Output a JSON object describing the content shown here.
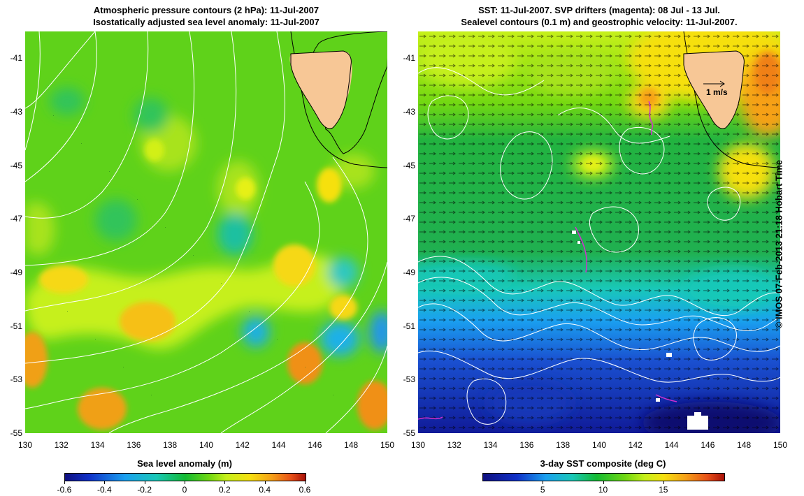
{
  "left_panel": {
    "title_line1": "Atmospheric pressure contours (2 hPa): 11-Jul-2007",
    "title_line2": "Isostatically adjusted sea level anomaly: 11-Jul-2007",
    "colorbar_title": "Sea level anomaly (m)",
    "colorbar_ticks": [
      "-0.6",
      "-0.4",
      "-0.2",
      "0",
      "0.2",
      "0.4",
      "0.6"
    ]
  },
  "right_panel": {
    "title_line1": "SST: 11-Jul-2007. SVP drifters (magenta): 08 Jul - 13 Jul.",
    "title_line2": "Sealevel contours (0.1 m) and geostrophic velocity: 11-Jul-2007.",
    "colorbar_title": "3-day SST composite (deg C)",
    "colorbar_ticks": [
      "5",
      "10",
      "15"
    ],
    "velocity_scale_label": "1 m/s"
  },
  "axes": {
    "lat_ticks": [
      "-41",
      "-43",
      "-45",
      "-47",
      "-49",
      "-51",
      "-53",
      "-55"
    ],
    "lon_ticks": [
      "130",
      "132",
      "134",
      "136",
      "138",
      "140",
      "142",
      "144",
      "146",
      "148",
      "150"
    ]
  },
  "credit": "© IMOS 07-Feb-2013 21:18 Hobart Time",
  "colors": {
    "land": "#f7c796",
    "contour": "#ffffff",
    "drifter": "#d030d0",
    "sla_background": "#5fd21a",
    "sst_background": "#22b340"
  }
}
